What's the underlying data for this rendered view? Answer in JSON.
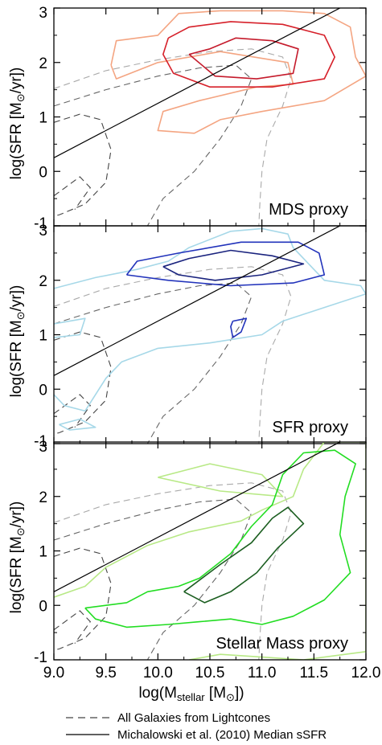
{
  "chart_data": {
    "type": "contour",
    "xlim": [
      9.0,
      12.0
    ],
    "ylim": [
      -1,
      3
    ],
    "x_ticks": [
      "9.0",
      "9.5",
      "10.0",
      "10.5",
      "11.0",
      "11.5",
      "12.0"
    ],
    "y_ticks": [
      "-1",
      "0",
      "1",
      "2",
      "3"
    ],
    "ylabel": "log(SFR [M⊙/yr])",
    "ylabel_pre": "log(SFR [M",
    "ylabel_sub": "⊙",
    "ylabel_post": "/yr])",
    "xlabel_pre": "log(M",
    "xlabel_sub": "stellar",
    "xlabel_mid": " [M",
    "xlabel_sub2": "⊙",
    "xlabel_post": "])",
    "legend": [
      {
        "label": "All Galaxies from Lightcones",
        "style": "dashed"
      },
      {
        "label": "Michalowski et al. (2010) Median sSFR",
        "style": "solid"
      }
    ],
    "relation_line": {
      "x": [
        9.0,
        12.0
      ],
      "y": [
        0.25,
        3.25
      ]
    },
    "all_galaxies_contours": [
      {
        "color": "#aaaaaa",
        "points": [
          [
            9.0,
            1.52
          ],
          [
            9.5,
            1.85
          ],
          [
            10.0,
            2.05
          ],
          [
            10.5,
            2.2
          ],
          [
            10.9,
            2.25
          ],
          [
            11.2,
            2.1
          ],
          [
            11.28,
            1.7
          ],
          [
            11.2,
            1.2
          ],
          [
            11.05,
            0.6
          ],
          [
            11.0,
            0.0
          ],
          [
            10.98,
            -0.6
          ],
          [
            10.97,
            -1.0
          ]
        ]
      },
      {
        "color": "#666666",
        "points": [
          [
            9.0,
            1.2
          ],
          [
            9.5,
            1.5
          ],
          [
            10.0,
            1.75
          ],
          [
            10.4,
            1.9
          ],
          [
            10.75,
            1.95
          ],
          [
            10.9,
            1.7
          ],
          [
            10.8,
            1.2
          ],
          [
            10.6,
            0.6
          ],
          [
            10.35,
            0.0
          ],
          [
            10.05,
            -0.5
          ],
          [
            9.9,
            -1.0
          ]
        ]
      },
      {
        "color": "#444444",
        "points": [
          [
            9.0,
            0.9
          ],
          [
            9.25,
            1.05
          ],
          [
            9.45,
            0.95
          ],
          [
            9.55,
            0.4
          ],
          [
            9.5,
            -0.2
          ],
          [
            9.3,
            -0.6
          ],
          [
            9.05,
            -0.8
          ],
          [
            9.0,
            -0.82
          ]
        ]
      },
      {
        "color": "#444444",
        "points": [
          [
            9.0,
            -0.45
          ],
          [
            9.25,
            -0.1
          ],
          [
            9.35,
            -0.3
          ],
          [
            9.2,
            -0.7
          ]
        ]
      }
    ],
    "panels": [
      {
        "label": "MDS proxy",
        "contours": [
          {
            "color": "#f4a582",
            "points": [
              [
                9.55,
                1.95
              ],
              [
                9.6,
                2.4
              ],
              [
                10.0,
                2.5
              ],
              [
                10.2,
                2.9
              ],
              [
                10.6,
                2.95
              ],
              [
                11.2,
                2.95
              ],
              [
                11.6,
                2.9
              ],
              [
                11.85,
                2.65
              ],
              [
                11.9,
                2.1
              ],
              [
                12.0,
                1.75
              ],
              [
                11.6,
                1.3
              ],
              [
                11.0,
                1.1
              ],
              [
                10.6,
                0.95
              ],
              [
                10.35,
                0.7
              ],
              [
                10.0,
                0.75
              ],
              [
                10.05,
                1.1
              ],
              [
                10.4,
                1.3
              ],
              [
                10.95,
                1.55
              ],
              [
                11.3,
                1.6
              ],
              [
                11.25,
                2.0
              ],
              [
                10.6,
                2.2
              ],
              [
                10.0,
                2.0
              ],
              [
                9.6,
                1.7
              ],
              [
                9.55,
                1.95
              ]
            ]
          },
          {
            "color": "#d6202a",
            "points": [
              [
                10.1,
                2.45
              ],
              [
                10.3,
                2.65
              ],
              [
                10.7,
                2.75
              ],
              [
                11.2,
                2.7
              ],
              [
                11.6,
                2.5
              ],
              [
                11.7,
                2.1
              ],
              [
                11.6,
                1.7
              ],
              [
                11.1,
                1.55
              ],
              [
                10.5,
                1.55
              ],
              [
                10.15,
                1.8
              ],
              [
                10.05,
                2.15
              ],
              [
                10.1,
                2.45
              ]
            ]
          },
          {
            "color": "#c51b2c",
            "points": [
              [
                10.3,
                2.15
              ],
              [
                10.5,
                2.25
              ],
              [
                10.75,
                2.45
              ],
              [
                11.1,
                2.4
              ],
              [
                11.35,
                2.25
              ],
              [
                11.3,
                1.8
              ],
              [
                10.95,
                1.7
              ],
              [
                10.55,
                1.75
              ],
              [
                10.3,
                2.15
              ]
            ]
          }
        ]
      },
      {
        "label": "SFR proxy",
        "contours": [
          {
            "color": "#a6d8e8",
            "points": [
              [
                9.0,
                1.85
              ],
              [
                9.4,
                2.05
              ],
              [
                9.8,
                2.2
              ],
              [
                10.1,
                2.35
              ],
              [
                10.3,
                2.6
              ],
              [
                10.7,
                2.9
              ],
              [
                11.0,
                2.95
              ],
              [
                11.25,
                2.85
              ],
              [
                11.3,
                2.6
              ],
              [
                11.6,
                2.0
              ],
              [
                11.95,
                1.9
              ],
              [
                12.0,
                1.75
              ],
              [
                11.6,
                1.5
              ],
              [
                11.2,
                1.25
              ],
              [
                11.0,
                1.0
              ],
              [
                10.5,
                0.85
              ],
              [
                10.0,
                0.75
              ],
              [
                9.65,
                0.5
              ],
              [
                9.5,
                0.2
              ],
              [
                9.3,
                -0.4
              ],
              [
                9.1,
                -0.3
              ],
              [
                9.0,
                -0.1
              ]
            ]
          },
          {
            "color": "#a6d8e8",
            "points": [
              [
                9.0,
                1.2
              ],
              [
                9.3,
                1.3
              ],
              [
                9.25,
                1.0
              ],
              [
                9.0,
                0.95
              ]
            ]
          },
          {
            "color": "#a6d8e8",
            "points": [
              [
                9.05,
                -0.65
              ],
              [
                9.25,
                -0.55
              ],
              [
                9.4,
                -0.7
              ],
              [
                9.15,
                -0.75
              ],
              [
                9.05,
                -0.65
              ]
            ]
          },
          {
            "color": "#2233bb",
            "points": [
              [
                9.7,
                2.1
              ],
              [
                9.8,
                2.35
              ],
              [
                10.2,
                2.5
              ],
              [
                10.8,
                2.7
              ],
              [
                11.35,
                2.7
              ],
              [
                11.55,
                2.5
              ],
              [
                11.6,
                2.1
              ],
              [
                11.3,
                1.95
              ],
              [
                10.7,
                1.9
              ],
              [
                10.1,
                2.0
              ],
              [
                9.7,
                2.1
              ]
            ]
          },
          {
            "color": "#1a237e",
            "points": [
              [
                10.05,
                2.25
              ],
              [
                10.3,
                2.4
              ],
              [
                10.7,
                2.55
              ],
              [
                11.1,
                2.45
              ],
              [
                11.4,
                2.3
              ],
              [
                11.0,
                2.1
              ],
              [
                10.55,
                2.0
              ],
              [
                10.2,
                2.1
              ],
              [
                10.05,
                2.25
              ]
            ]
          },
          {
            "color": "#2233bb",
            "points": [
              [
                10.72,
                1.25
              ],
              [
                10.85,
                1.3
              ],
              [
                10.8,
                1.05
              ],
              [
                10.72,
                0.95
              ],
              [
                10.7,
                1.15
              ],
              [
                10.72,
                1.25
              ]
            ]
          }
        ]
      },
      {
        "label": "Stellar Mass proxy",
        "contours": [
          {
            "color": "#b8e986",
            "points": [
              [
                9.0,
                0.15
              ],
              [
                9.3,
                0.35
              ],
              [
                9.5,
                0.7
              ],
              [
                9.9,
                1.1
              ],
              [
                10.3,
                1.35
              ],
              [
                10.8,
                1.55
              ],
              [
                11.0,
                1.75
              ],
              [
                11.3,
                2.0
              ],
              [
                11.4,
                2.5
              ],
              [
                11.6,
                3.0
              ],
              [
                12.0,
                3.0
              ],
              [
                12.0,
                -0.85
              ],
              [
                11.8,
                -0.9
              ],
              [
                11.4,
                -1.0
              ],
              [
                11.0,
                -0.95
              ],
              [
                10.6,
                -0.9
              ],
              [
                10.3,
                -1.0
              ]
            ]
          },
          {
            "color": "#b8e986",
            "points": [
              [
                10.0,
                2.35
              ],
              [
                10.5,
                2.6
              ],
              [
                11.0,
                2.4
              ],
              [
                11.2,
                2.0
              ],
              [
                10.6,
                2.1
              ],
              [
                10.0,
                2.35
              ]
            ]
          },
          {
            "color": "#22dd22",
            "points": [
              [
                9.3,
                -0.05
              ],
              [
                9.7,
                0.05
              ],
              [
                9.9,
                0.25
              ],
              [
                10.2,
                0.35
              ],
              [
                10.4,
                0.5
              ],
              [
                10.7,
                0.95
              ],
              [
                10.9,
                1.45
              ],
              [
                11.1,
                1.85
              ],
              [
                11.2,
                2.4
              ],
              [
                11.4,
                2.8
              ],
              [
                11.7,
                2.85
              ],
              [
                11.9,
                2.6
              ],
              [
                11.8,
                2.0
              ],
              [
                11.75,
                1.3
              ],
              [
                11.85,
                0.6
              ],
              [
                11.6,
                0.1
              ],
              [
                11.3,
                -0.2
              ],
              [
                11.0,
                -0.35
              ],
              [
                10.7,
                -0.25
              ],
              [
                10.4,
                -0.3
              ],
              [
                10.1,
                -0.35
              ],
              [
                9.7,
                -0.4
              ],
              [
                9.4,
                -0.25
              ],
              [
                9.3,
                -0.05
              ]
            ]
          },
          {
            "color": "#1b5e20",
            "points": [
              [
                10.25,
                0.25
              ],
              [
                10.6,
                0.75
              ],
              [
                10.9,
                1.15
              ],
              [
                11.1,
                1.6
              ],
              [
                11.25,
                1.8
              ],
              [
                11.4,
                1.5
              ],
              [
                11.15,
                1.05
              ],
              [
                10.95,
                0.6
              ],
              [
                10.7,
                0.25
              ],
              [
                10.45,
                0.05
              ],
              [
                10.25,
                0.25
              ]
            ]
          }
        ]
      }
    ]
  }
}
